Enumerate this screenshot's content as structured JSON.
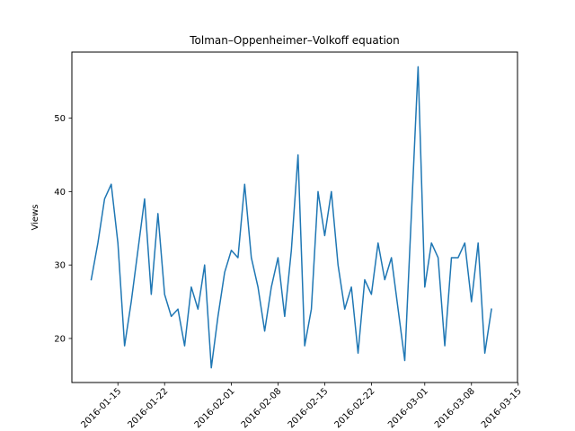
{
  "chart_data": {
    "type": "line",
    "title": "Tolman–Oppenheimer–Volkoff equation",
    "xlabel": "",
    "ylabel": "Views",
    "x_start_date": "2016-01-11",
    "x_step_days": 1,
    "xlim_days_from_start": [
      -2.9,
      63.9
    ],
    "ylim": [
      14.0,
      59.0
    ],
    "series": [
      {
        "name": "Views",
        "color": "#1f77b4",
        "values": [
          28,
          33,
          39,
          41,
          33,
          19,
          25,
          32,
          39,
          26,
          37,
          26,
          23,
          24,
          19,
          27,
          24,
          30,
          16,
          23,
          29,
          32,
          31,
          41,
          31,
          27,
          21,
          27,
          31,
          23,
          32,
          45,
          19,
          24,
          40,
          34,
          40,
          30,
          24,
          27,
          18,
          28,
          26,
          33,
          28,
          31,
          24,
          17,
          37,
          57,
          27,
          33,
          31,
          19,
          31,
          31,
          33,
          25,
          33,
          18,
          24
        ]
      }
    ],
    "x_ticks": [
      {
        "label": "2016-01-15",
        "day": 4
      },
      {
        "label": "2016-01-22",
        "day": 11
      },
      {
        "label": "2016-02-01",
        "day": 21
      },
      {
        "label": "2016-02-08",
        "day": 28
      },
      {
        "label": "2016-02-15",
        "day": 35
      },
      {
        "label": "2016-02-22",
        "day": 42
      },
      {
        "label": "2016-03-01",
        "day": 50
      },
      {
        "label": "2016-03-08",
        "day": 57
      },
      {
        "label": "2016-03-15",
        "day": 64
      }
    ],
    "y_ticks": [
      20,
      30,
      40,
      50
    ]
  }
}
